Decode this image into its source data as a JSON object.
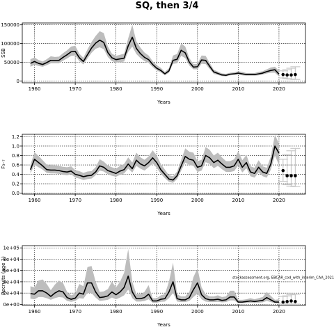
{
  "title": "SQ, then 3/4",
  "annotation": "stockassessment.org, EBCAR_cod_with_interim_CAA_2021",
  "colors": {
    "band": "#bdbdbd",
    "line": "#000000",
    "proj_band": "#c8c8c8",
    "grid": "#000000"
  },
  "chart_data": [
    {
      "type": "line",
      "ylabel": "SSB",
      "xlabel": "Years",
      "xlim": [
        1957,
        2026.5
      ],
      "ylim": [
        -5000,
        155000
      ],
      "xticks": [
        1960,
        1970,
        1980,
        1990,
        2000,
        2010,
        2020
      ],
      "yticks": [
        0,
        50000,
        100000,
        150000
      ],
      "ytick_labels": [
        "0",
        "50000",
        "100000",
        "150000"
      ],
      "grid": true,
      "years": [
        1959,
        1960,
        1961,
        1962,
        1963,
        1964,
        1965,
        1966,
        1967,
        1968,
        1969,
        1970,
        1971,
        1972,
        1973,
        1974,
        1975,
        1976,
        1977,
        1978,
        1979,
        1980,
        1981,
        1982,
        1983,
        1984,
        1985,
        1986,
        1987,
        1988,
        1989,
        1990,
        1991,
        1992,
        1993,
        1994,
        1995,
        1996,
        1997,
        1998,
        1999,
        2000,
        2001,
        2002,
        2003,
        2004,
        2005,
        2006,
        2007,
        2008,
        2009,
        2010,
        2011,
        2012,
        2013,
        2014,
        2015,
        2016,
        2017,
        2018,
        2019,
        2020
      ],
      "values": [
        47000,
        52000,
        47000,
        44000,
        49000,
        55000,
        55000,
        55000,
        63000,
        70000,
        78000,
        79000,
        62000,
        52000,
        70000,
        88000,
        101000,
        109000,
        103000,
        76000,
        62000,
        57000,
        59000,
        61000,
        94000,
        117000,
        87000,
        73000,
        63000,
        57000,
        44000,
        34000,
        28000,
        19000,
        27000,
        55000,
        58000,
        82000,
        75000,
        50000,
        37000,
        38000,
        56000,
        55000,
        39000,
        24000,
        20000,
        16000,
        15000,
        18000,
        19000,
        21000,
        19000,
        17000,
        17000,
        17000,
        19000,
        21000,
        25000,
        28000,
        30000,
        18000
      ],
      "lower": [
        38000,
        43000,
        40000,
        38000,
        42000,
        47000,
        47000,
        47000,
        54000,
        60000,
        67000,
        68000,
        53000,
        44000,
        60000,
        75000,
        86000,
        90000,
        85000,
        64000,
        53000,
        49000,
        50000,
        52000,
        78000,
        92000,
        72000,
        61000,
        53000,
        48000,
        37000,
        28000,
        23000,
        15000,
        22000,
        46000,
        47000,
        67000,
        61000,
        41000,
        31000,
        31000,
        46000,
        45000,
        32000,
        19000,
        16000,
        13000,
        12000,
        15000,
        16000,
        17000,
        15000,
        14000,
        14000,
        14000,
        15000,
        17000,
        20000,
        22000,
        22000,
        12000
      ],
      "upper": [
        58000,
        63000,
        56000,
        52000,
        58000,
        66000,
        64000,
        65000,
        74000,
        82000,
        92000,
        94000,
        73000,
        62000,
        84000,
        104000,
        120000,
        133000,
        128000,
        92000,
        73000,
        67000,
        70000,
        73000,
        114000,
        150000,
        106000,
        89000,
        76000,
        68000,
        53000,
        42000,
        35000,
        24000,
        34000,
        68000,
        72000,
        100000,
        92000,
        61000,
        45000,
        46000,
        68000,
        67000,
        48000,
        30000,
        25000,
        20000,
        19000,
        22000,
        23000,
        26000,
        24000,
        21000,
        21000,
        21000,
        24000,
        26000,
        31000,
        36000,
        38000,
        27000
      ],
      "projection": {
        "years": [
          2021,
          2022,
          2023,
          2024
        ],
        "values": [
          17000,
          16000,
          16000,
          17000
        ],
        "lower": [
          8000,
          6000,
          5000,
          4000
        ],
        "upper": [
          27000,
          30000,
          34000,
          38000
        ]
      }
    },
    {
      "type": "line",
      "ylabel": "F₃₋₇",
      "xlabel": "Years",
      "xlim": [
        1957,
        2026.5
      ],
      "ylim": [
        -0.02,
        1.25
      ],
      "xticks": [
        1960,
        1970,
        1980,
        1990,
        2000,
        2010,
        2020
      ],
      "yticks": [
        0,
        0.2,
        0.4,
        0.6,
        0.8,
        1.0,
        1.2
      ],
      "ytick_labels": [
        "0.0",
        "0.2",
        "0.4",
        "0.6",
        "0.8",
        "1.0",
        "1.2"
      ],
      "grid": true,
      "years": [
        1959,
        1960,
        1961,
        1962,
        1963,
        1964,
        1965,
        1966,
        1967,
        1968,
        1969,
        1970,
        1971,
        1972,
        1973,
        1974,
        1975,
        1976,
        1977,
        1978,
        1979,
        1980,
        1981,
        1982,
        1983,
        1984,
        1985,
        1986,
        1987,
        1988,
        1989,
        1990,
        1991,
        1992,
        1993,
        1994,
        1995,
        1996,
        1997,
        1998,
        1999,
        2000,
        2001,
        2002,
        2003,
        2004,
        2005,
        2006,
        2007,
        2008,
        2009,
        2010,
        2011,
        2012,
        2013,
        2014,
        2015,
        2016,
        2017,
        2018,
        2019,
        2020
      ],
      "values": [
        0.5,
        0.72,
        0.65,
        0.58,
        0.5,
        0.49,
        0.49,
        0.48,
        0.46,
        0.45,
        0.47,
        0.4,
        0.38,
        0.35,
        0.37,
        0.38,
        0.45,
        0.58,
        0.55,
        0.48,
        0.45,
        0.42,
        0.47,
        0.5,
        0.62,
        0.52,
        0.7,
        0.62,
        0.58,
        0.65,
        0.75,
        0.65,
        0.5,
        0.4,
        0.3,
        0.28,
        0.37,
        0.58,
        0.78,
        0.72,
        0.7,
        0.55,
        0.58,
        0.8,
        0.75,
        0.65,
        0.7,
        0.62,
        0.55,
        0.55,
        0.58,
        0.72,
        0.55,
        0.65,
        0.45,
        0.42,
        0.55,
        0.45,
        0.42,
        0.62,
        1.0,
        0.85
      ],
      "lower": [
        0.42,
        0.6,
        0.55,
        0.5,
        0.43,
        0.42,
        0.42,
        0.41,
        0.39,
        0.38,
        0.4,
        0.33,
        0.31,
        0.28,
        0.3,
        0.31,
        0.38,
        0.48,
        0.46,
        0.4,
        0.37,
        0.35,
        0.39,
        0.42,
        0.52,
        0.44,
        0.58,
        0.52,
        0.48,
        0.55,
        0.63,
        0.54,
        0.41,
        0.32,
        0.24,
        0.22,
        0.3,
        0.48,
        0.65,
        0.6,
        0.58,
        0.45,
        0.48,
        0.66,
        0.62,
        0.53,
        0.58,
        0.51,
        0.45,
        0.45,
        0.47,
        0.59,
        0.44,
        0.53,
        0.36,
        0.33,
        0.44,
        0.36,
        0.33,
        0.5,
        0.8,
        0.6
      ],
      "upper": [
        0.6,
        0.87,
        0.79,
        0.7,
        0.61,
        0.59,
        0.59,
        0.58,
        0.56,
        0.55,
        0.57,
        0.49,
        0.47,
        0.43,
        0.46,
        0.47,
        0.55,
        0.72,
        0.67,
        0.59,
        0.55,
        0.52,
        0.58,
        0.62,
        0.76,
        0.65,
        0.86,
        0.76,
        0.71,
        0.78,
        0.91,
        0.8,
        0.62,
        0.5,
        0.38,
        0.36,
        0.46,
        0.71,
        0.95,
        0.88,
        0.86,
        0.68,
        0.71,
        0.98,
        0.92,
        0.8,
        0.86,
        0.76,
        0.68,
        0.68,
        0.72,
        0.89,
        0.7,
        0.81,
        0.57,
        0.54,
        0.7,
        0.57,
        0.54,
        0.78,
        1.24,
        1.05
      ],
      "projection": {
        "years": [
          2021,
          2022,
          2023,
          2024
        ],
        "values": [
          0.48,
          0.37,
          0.37,
          0.37
        ],
        "lower": [
          0.25,
          0.18,
          0.15,
          0.14
        ],
        "upper": [
          0.72,
          0.82,
          0.9,
          0.95
        ]
      }
    },
    {
      "type": "line",
      "ylabel": "Recruits (age 1)",
      "xlabel": "Years",
      "xlim": [
        1957,
        2026.5
      ],
      "ylim": [
        -2000,
        104000
      ],
      "xticks": [
        1960,
        1970,
        1980,
        1990,
        2000,
        2010,
        2020
      ],
      "yticks": [
        0,
        20000,
        40000,
        60000,
        80000,
        100000
      ],
      "ytick_labels": [
        "0e+00",
        "2e+04",
        "4e+04",
        "6e+04",
        "8e+04",
        "1e+05"
      ],
      "grid": true,
      "years": [
        1959,
        1960,
        1961,
        1962,
        1963,
        1964,
        1965,
        1966,
        1967,
        1968,
        1969,
        1970,
        1971,
        1972,
        1973,
        1974,
        1975,
        1976,
        1977,
        1978,
        1979,
        1980,
        1981,
        1982,
        1983,
        1984,
        1985,
        1986,
        1987,
        1988,
        1989,
        1990,
        1991,
        1992,
        1993,
        1994,
        1995,
        1996,
        1997,
        1998,
        1999,
        2000,
        2001,
        2002,
        2003,
        2004,
        2005,
        2006,
        2007,
        2008,
        2009,
        2010,
        2011,
        2012,
        2013,
        2014,
        2015,
        2016,
        2017,
        2018,
        2019,
        2020
      ],
      "values": [
        19000,
        18000,
        24000,
        24000,
        20000,
        14000,
        20000,
        24000,
        22000,
        12000,
        9000,
        11000,
        20000,
        18000,
        38000,
        38000,
        22000,
        12000,
        13000,
        15000,
        22000,
        17000,
        22000,
        30000,
        50000,
        22000,
        10000,
        10000,
        12000,
        18000,
        6000,
        6000,
        9000,
        10000,
        22000,
        40000,
        10000,
        8000,
        8000,
        12000,
        26000,
        38000,
        17000,
        10000,
        8000,
        8000,
        9000,
        7000,
        8000,
        13000,
        13000,
        4000,
        4000,
        5000,
        6000,
        5000,
        6000,
        7000,
        12000,
        8000,
        4000,
        4000
      ],
      "lower": [
        10000,
        9000,
        13000,
        13000,
        11000,
        8000,
        11000,
        13000,
        12000,
        6000,
        4500,
        6000,
        11000,
        10000,
        20000,
        20000,
        12000,
        6000,
        7000,
        8000,
        12000,
        9000,
        12000,
        16000,
        26000,
        11000,
        5000,
        5000,
        6000,
        9000,
        3000,
        3000,
        4500,
        5000,
        11000,
        20000,
        5000,
        4000,
        4000,
        6000,
        13000,
        19000,
        9000,
        5000,
        4000,
        4000,
        4500,
        3500,
        4000,
        7000,
        7000,
        2000,
        2000,
        2500,
        3000,
        2500,
        3000,
        3500,
        6000,
        4000,
        2000,
        1500
      ],
      "upper": [
        32000,
        30000,
        42000,
        44000,
        36000,
        25000,
        35000,
        42000,
        38000,
        22000,
        16000,
        19000,
        36000,
        32000,
        66000,
        68000,
        40000,
        22000,
        23000,
        27000,
        40000,
        30000,
        40000,
        56000,
        98000,
        40000,
        18000,
        18000,
        22000,
        34000,
        11000,
        11000,
        16000,
        18000,
        40000,
        74000,
        18000,
        14000,
        14000,
        22000,
        48000,
        64000,
        30000,
        18000,
        14000,
        14000,
        16000,
        13000,
        14000,
        24000,
        24000,
        8000,
        8000,
        9000,
        11000,
        9000,
        11000,
        13000,
        22000,
        15000,
        8000,
        9000
      ],
      "projection": {
        "years": [
          2021,
          2022,
          2023,
          2024
        ],
        "values": [
          4000,
          5000,
          6000,
          5000
        ],
        "lower": [
          500,
          400,
          300,
          300
        ],
        "upper": [
          14000,
          15000,
          17000,
          18000
        ]
      }
    }
  ]
}
